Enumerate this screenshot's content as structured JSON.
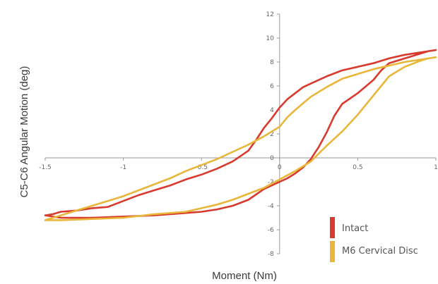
{
  "chart_data": {
    "type": "line",
    "title": "",
    "xlabel": "Moment (Nm)",
    "ylabel": "C5-C6 Angular Motion (deg)",
    "xlim": [
      -1.5,
      1
    ],
    "ylim": [
      -8,
      12
    ],
    "x_ticks": [
      -1.5,
      -1,
      -0.5,
      0,
      0.5,
      1
    ],
    "x_tick_labels": [
      "-1.5",
      "-1",
      "-0.5",
      "0",
      "0.5",
      "1"
    ],
    "y_ticks": [
      -8,
      -6,
      -4,
      -2,
      0,
      2,
      4,
      6,
      8,
      10,
      12
    ],
    "y_tick_labels": [
      "-8",
      "-6",
      "-4",
      "-2",
      "0",
      "2",
      "4",
      "6",
      "8",
      "10",
      "12"
    ],
    "grid": false,
    "legend_position": "bottom-right",
    "series": [
      {
        "name": "Intact",
        "color": "#d83a2e",
        "points": [
          [
            -1.5,
            -4.8
          ],
          [
            -1.45,
            -4.7
          ],
          [
            -1.4,
            -4.5
          ],
          [
            -1.3,
            -4.4
          ],
          [
            -1.2,
            -4.2
          ],
          [
            -1.1,
            -4.1
          ],
          [
            -1.0,
            -3.6
          ],
          [
            -0.9,
            -3.1
          ],
          [
            -0.8,
            -2.7
          ],
          [
            -0.7,
            -2.3
          ],
          [
            -0.6,
            -1.8
          ],
          [
            -0.5,
            -1.4
          ],
          [
            -0.4,
            -0.9
          ],
          [
            -0.3,
            -0.3
          ],
          [
            -0.2,
            0.6
          ],
          [
            -0.15,
            1.5
          ],
          [
            -0.1,
            2.5
          ],
          [
            -0.05,
            3.3
          ],
          [
            0.0,
            4.2
          ],
          [
            0.05,
            4.9
          ],
          [
            0.1,
            5.4
          ],
          [
            0.15,
            5.9
          ],
          [
            0.2,
            6.2
          ],
          [
            0.3,
            6.8
          ],
          [
            0.4,
            7.3
          ],
          [
            0.5,
            7.6
          ],
          [
            0.6,
            7.9
          ],
          [
            0.7,
            8.3
          ],
          [
            0.8,
            8.6
          ],
          [
            0.9,
            8.8
          ],
          [
            1.0,
            9.0
          ],
          [
            0.95,
            8.9
          ],
          [
            0.9,
            8.7
          ],
          [
            0.8,
            8.3
          ],
          [
            0.7,
            7.9
          ],
          [
            0.65,
            7.3
          ],
          [
            0.6,
            6.5
          ],
          [
            0.5,
            5.4
          ],
          [
            0.4,
            4.5
          ],
          [
            0.35,
            3.5
          ],
          [
            0.3,
            2.1
          ],
          [
            0.25,
            0.9
          ],
          [
            0.2,
            -0.1
          ],
          [
            0.15,
            -0.8
          ],
          [
            0.1,
            -1.3
          ],
          [
            0.05,
            -1.7
          ],
          [
            0.0,
            -2.0
          ],
          [
            -0.1,
            -2.6
          ],
          [
            -0.2,
            -3.5
          ],
          [
            -0.3,
            -4.0
          ],
          [
            -0.4,
            -4.3
          ],
          [
            -0.5,
            -4.5
          ],
          [
            -0.6,
            -4.6
          ],
          [
            -0.8,
            -4.8
          ],
          [
            -1.0,
            -4.9
          ],
          [
            -1.2,
            -5.0
          ],
          [
            -1.4,
            -5.0
          ],
          [
            -1.5,
            -4.8
          ]
        ]
      },
      {
        "name": "M6 Cervical Disc",
        "color": "#e8b73a",
        "points": [
          [
            -1.5,
            -5.2
          ],
          [
            -1.45,
            -5.0
          ],
          [
            -1.4,
            -4.8
          ],
          [
            -1.3,
            -4.4
          ],
          [
            -1.2,
            -4.0
          ],
          [
            -1.1,
            -3.6
          ],
          [
            -1.0,
            -3.2
          ],
          [
            -0.9,
            -2.7
          ],
          [
            -0.8,
            -2.2
          ],
          [
            -0.7,
            -1.7
          ],
          [
            -0.6,
            -1.1
          ],
          [
            -0.5,
            -0.6
          ],
          [
            -0.4,
            -0.1
          ],
          [
            -0.3,
            0.5
          ],
          [
            -0.2,
            1.1
          ],
          [
            -0.1,
            1.8
          ],
          [
            0.0,
            2.6
          ],
          [
            0.05,
            3.4
          ],
          [
            0.1,
            4.0
          ],
          [
            0.2,
            5.1
          ],
          [
            0.3,
            5.9
          ],
          [
            0.4,
            6.6
          ],
          [
            0.5,
            7.0
          ],
          [
            0.6,
            7.4
          ],
          [
            0.7,
            7.7
          ],
          [
            0.8,
            8.0
          ],
          [
            0.9,
            8.2
          ],
          [
            1.0,
            8.4
          ],
          [
            0.95,
            8.3
          ],
          [
            0.9,
            8.1
          ],
          [
            0.8,
            7.6
          ],
          [
            0.7,
            6.8
          ],
          [
            0.65,
            6.0
          ],
          [
            0.6,
            5.2
          ],
          [
            0.5,
            3.6
          ],
          [
            0.4,
            2.2
          ],
          [
            0.3,
            1.0
          ],
          [
            0.2,
            -0.3
          ],
          [
            0.1,
            -1.1
          ],
          [
            0.0,
            -1.8
          ],
          [
            -0.1,
            -2.5
          ],
          [
            -0.2,
            -3.0
          ],
          [
            -0.3,
            -3.5
          ],
          [
            -0.4,
            -3.9
          ],
          [
            -0.5,
            -4.2
          ],
          [
            -0.6,
            -4.5
          ],
          [
            -0.8,
            -4.7
          ],
          [
            -1.0,
            -5.0
          ],
          [
            -1.2,
            -5.1
          ],
          [
            -1.4,
            -5.2
          ],
          [
            -1.5,
            -5.2
          ]
        ]
      }
    ]
  }
}
